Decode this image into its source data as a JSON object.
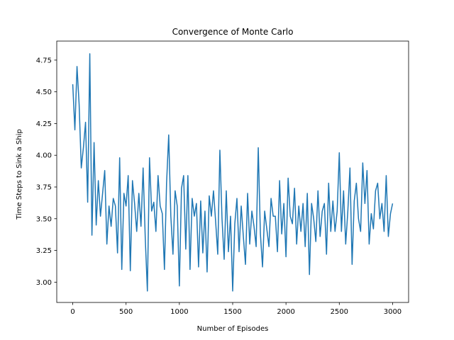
{
  "chart_data": {
    "type": "line",
    "title": "Convergence of Monte Carlo",
    "xlabel": "Number of Episodes",
    "ylabel": "Time Steps to Sink a Ship",
    "xlim": [
      -150,
      3150
    ],
    "ylim": [
      2.84,
      4.9
    ],
    "xticks": [
      0,
      500,
      1000,
      1500,
      2000,
      2500,
      3000
    ],
    "yticks": [
      3.0,
      3.25,
      3.5,
      3.75,
      4.0,
      4.25,
      4.5,
      4.75
    ],
    "ytick_labels": [
      "3.00",
      "3.25",
      "3.50",
      "3.75",
      "4.00",
      "4.25",
      "4.50",
      "4.75"
    ],
    "grid": false,
    "series": [
      {
        "color": "#1f77b4",
        "x": [
          0,
          20,
          40,
          60,
          80,
          100,
          120,
          140,
          160,
          180,
          200,
          220,
          240,
          260,
          280,
          300,
          320,
          340,
          360,
          380,
          400,
          420,
          440,
          460,
          480,
          500,
          520,
          540,
          560,
          580,
          600,
          620,
          640,
          660,
          680,
          700,
          720,
          740,
          760,
          780,
          800,
          820,
          840,
          860,
          880,
          900,
          920,
          940,
          960,
          980,
          1000,
          1020,
          1040,
          1060,
          1080,
          1100,
          1120,
          1140,
          1160,
          1180,
          1200,
          1220,
          1240,
          1260,
          1280,
          1300,
          1320,
          1340,
          1360,
          1380,
          1400,
          1420,
          1440,
          1460,
          1480,
          1500,
          1520,
          1540,
          1560,
          1580,
          1600,
          1620,
          1640,
          1660,
          1680,
          1700,
          1720,
          1740,
          1760,
          1780,
          1800,
          1820,
          1840,
          1860,
          1880,
          1900,
          1920,
          1940,
          1960,
          1980,
          2000,
          2020,
          2040,
          2060,
          2080,
          2100,
          2120,
          2140,
          2160,
          2180,
          2200,
          2220,
          2240,
          2260,
          2280,
          2300,
          2320,
          2340,
          2360,
          2380,
          2400,
          2420,
          2440,
          2460,
          2480,
          2500,
          2520,
          2540,
          2560,
          2580,
          2600,
          2620,
          2640,
          2660,
          2680,
          2700,
          2720,
          2740,
          2760,
          2780,
          2800,
          2820,
          2840,
          2860,
          2880,
          2900,
          2920,
          2940,
          2960,
          2980,
          3000
        ],
        "y": [
          4.56,
          4.2,
          4.7,
          4.4,
          3.9,
          4.06,
          4.26,
          3.63,
          4.8,
          3.37,
          4.1,
          3.45,
          3.8,
          3.52,
          3.7,
          3.88,
          3.3,
          3.6,
          3.44,
          3.66,
          3.6,
          3.23,
          3.98,
          3.1,
          3.7,
          3.6,
          3.84,
          3.09,
          3.8,
          3.62,
          3.4,
          3.7,
          3.44,
          3.9,
          3.35,
          2.93,
          3.98,
          3.56,
          3.63,
          3.4,
          3.84,
          3.6,
          3.54,
          3.1,
          3.78,
          4.16,
          3.52,
          3.22,
          3.72,
          3.6,
          2.97,
          3.74,
          3.84,
          3.26,
          3.84,
          3.1,
          3.66,
          3.52,
          3.62,
          3.12,
          3.64,
          3.23,
          3.56,
          3.08,
          3.68,
          3.52,
          3.72,
          3.48,
          3.22,
          4.04,
          3.5,
          3.18,
          3.72,
          3.24,
          3.52,
          2.93,
          3.46,
          3.66,
          3.24,
          3.6,
          3.36,
          3.14,
          3.7,
          3.3,
          3.56,
          3.44,
          3.28,
          4.06,
          3.38,
          3.12,
          3.56,
          3.42,
          3.28,
          3.66,
          3.52,
          3.52,
          3.24,
          3.8,
          3.38,
          3.62,
          3.2,
          3.82,
          3.52,
          3.46,
          3.74,
          3.3,
          3.6,
          3.4,
          3.62,
          3.28,
          3.7,
          3.06,
          3.62,
          3.5,
          3.32,
          3.72,
          3.36,
          3.56,
          3.62,
          3.22,
          3.78,
          3.4,
          3.64,
          3.4,
          3.56,
          4.02,
          3.4,
          3.72,
          3.3,
          3.56,
          3.9,
          3.14,
          3.64,
          3.78,
          3.5,
          3.4,
          3.94,
          3.62,
          3.88,
          3.3,
          3.54,
          3.42,
          3.72,
          3.78,
          3.5,
          3.62,
          3.4,
          3.84,
          3.36,
          3.54,
          3.62
        ]
      }
    ]
  }
}
